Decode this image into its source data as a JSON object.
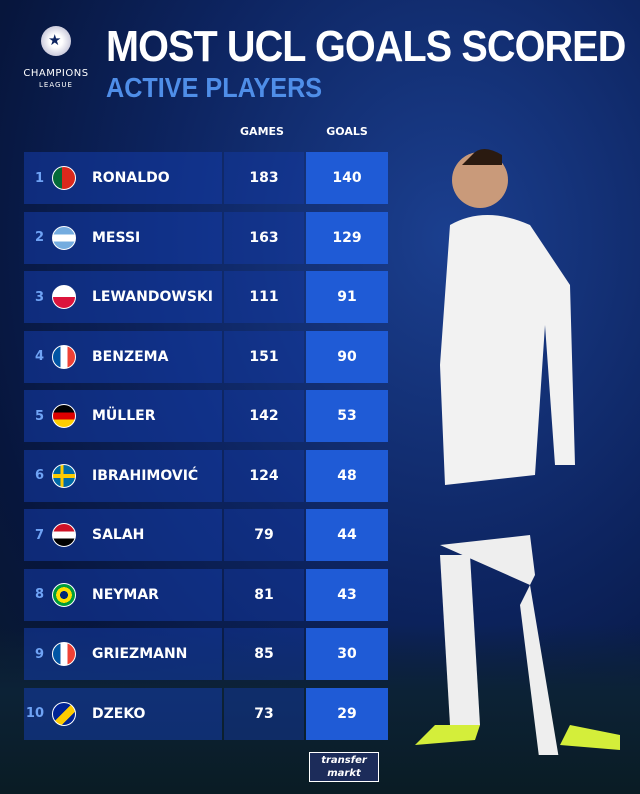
{
  "logo": {
    "line1": "CHAMPIONS",
    "line2": "LEAGUE"
  },
  "title": "MOST UCL GOALS SCORED",
  "subtitle": "ACTIVE PLAYERS",
  "headers": {
    "games": "GAMES",
    "goals": "GOALS"
  },
  "rows": [
    {
      "rank": "1",
      "name": "RONALDO",
      "games": "183",
      "goals": "140",
      "flag": "portugal"
    },
    {
      "rank": "2",
      "name": "MESSI",
      "games": "163",
      "goals": "129",
      "flag": "argentina"
    },
    {
      "rank": "3",
      "name": "LEWANDOWSKI",
      "games": "111",
      "goals": "91",
      "flag": "poland"
    },
    {
      "rank": "4",
      "name": "BENZEMA",
      "games": "151",
      "goals": "90",
      "flag": "france"
    },
    {
      "rank": "5",
      "name": "MÜLLER",
      "games": "142",
      "goals": "53",
      "flag": "germany"
    },
    {
      "rank": "6",
      "name": "IBRAHIMOVIĆ",
      "games": "124",
      "goals": "48",
      "flag": "sweden"
    },
    {
      "rank": "7",
      "name": "SALAH",
      "games": "79",
      "goals": "44",
      "flag": "egypt"
    },
    {
      "rank": "8",
      "name": "NEYMAR",
      "games": "81",
      "goals": "43",
      "flag": "brazil"
    },
    {
      "rank": "9",
      "name": "GRIEZMANN",
      "games": "85",
      "goals": "30",
      "flag": "france"
    },
    {
      "rank": "10",
      "name": "DZEKO",
      "games": "73",
      "goals": "29",
      "flag": "bosnia"
    }
  ],
  "brand": {
    "line1": "transfer",
    "line2": "markt"
  },
  "colors": {
    "accent": "#1f5bd6",
    "subtitle": "#4f8ee8"
  }
}
